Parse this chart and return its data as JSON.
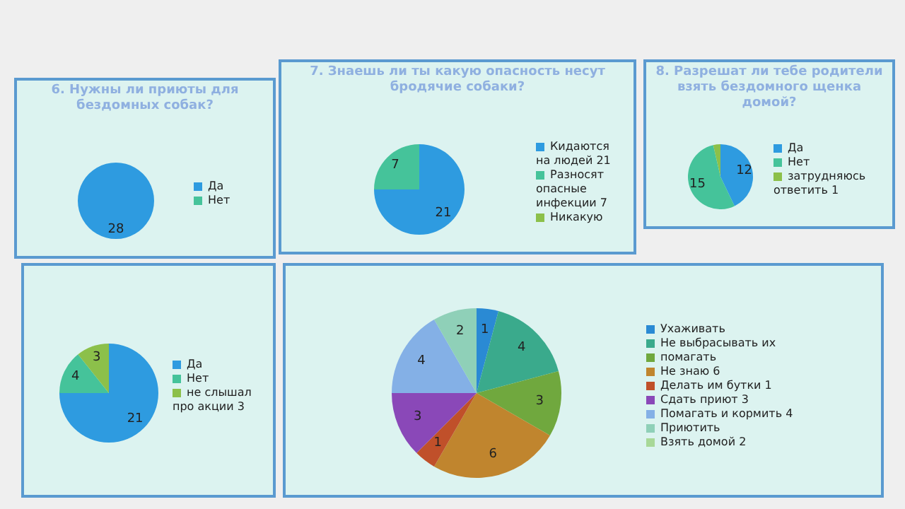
{
  "chart_data": [
    {
      "type": "pie",
      "title": "6.  Нужны ли приюты для бездомных собак?",
      "categories": [
        "Да",
        "Нет"
      ],
      "values": [
        28,
        null
      ],
      "colors": [
        "#2e9be0",
        "#45c39a"
      ],
      "data_labels": true,
      "legend": "right"
    },
    {
      "type": "pie",
      "title": "7. Знаешь ли ты какую опасность несут бродячие собаки?",
      "categories": [
        "Кидаются на людей 21",
        "Разносят опасные инфекции 7",
        "Никакую"
      ],
      "values": [
        21,
        7,
        null
      ],
      "colors": [
        "#2e9be0",
        "#45c39a",
        "#8cc04a"
      ],
      "data_labels": true,
      "legend": "right"
    },
    {
      "type": "pie",
      "title": "8. Разрешат ли тебе родители взять бездомного щенка домой?",
      "categories": [
        "Да",
        "Нет",
        "затрудняюсь ответить 1"
      ],
      "values": [
        12,
        15,
        1
      ],
      "colors": [
        "#2e9be0",
        "#45c39a",
        "#8cc04a"
      ],
      "value_labels": [
        "12",
        "15",
        null
      ],
      "legend": "right"
    },
    {
      "type": "pie",
      "categories": [
        "Да",
        "Нет",
        "не слышал про акции 3"
      ],
      "values": [
        21,
        4,
        3
      ],
      "colors": [
        "#2e9be0",
        "#45c39a",
        "#8cc04a"
      ],
      "data_labels": true,
      "legend": "right"
    },
    {
      "type": "pie",
      "categories": [
        "Ухаживать",
        "Не выбрасывать их",
        "помагать",
        "Не знаю 6",
        "Делать им бутки 1",
        "Сдать приют 3",
        "Помагать и кормить 4",
        "Приютить",
        "Взять домой 2"
      ],
      "values": [
        1,
        4,
        3,
        6,
        1,
        3,
        4,
        2,
        null
      ],
      "colors": [
        "#2a8ad4",
        "#3aaa8c",
        "#70a83e",
        "#c0852e",
        "#c0502a",
        "#8a48b8",
        "#84b0e6",
        "#8fd0b8",
        "#a8d898"
      ],
      "data_labels": true,
      "legend": "right"
    }
  ]
}
